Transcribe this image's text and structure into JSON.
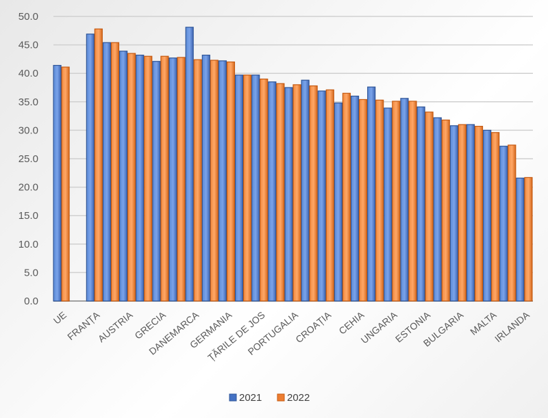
{
  "chart_data": {
    "type": "bar",
    "title": "",
    "xlabel": "",
    "ylabel": "",
    "ylim": [
      0,
      50
    ],
    "yticks": [
      "0.0",
      "5.0",
      "10.0",
      "15.0",
      "20.0",
      "25.0",
      "30.0",
      "35.0",
      "40.0",
      "45.0",
      "50.0"
    ],
    "grid": true,
    "legend_position": "bottom",
    "categories": [
      "UE",
      "",
      "FRANȚA",
      "",
      "AUSTRIA",
      "",
      "GRECIA",
      "",
      "DANEMARCA",
      "",
      "GERMANIA",
      "",
      "ȚĂRILE DE JOS",
      "",
      "PORTUGALIA",
      "",
      "CROAȚIA",
      "",
      "CEHIA",
      "",
      "UNGARIA",
      "",
      "ESTONIA",
      "",
      "BULGARIA",
      "",
      "MALTA",
      "",
      "IRLANDA"
    ],
    "series": [
      {
        "name": "2021",
        "color": "#4472C4",
        "values": [
          41.4,
          null,
          46.9,
          45.4,
          43.9,
          43.2,
          42.1,
          42.7,
          48.1,
          43.2,
          42.2,
          39.7,
          39.7,
          38.5,
          37.5,
          38.8,
          36.9,
          34.8,
          36.0,
          37.6,
          33.9,
          35.6,
          34.1,
          32.2,
          30.8,
          31.0,
          30.0,
          27.2,
          21.6
        ]
      },
      {
        "name": "2022",
        "color": "#ED7D31",
        "values": [
          41.1,
          null,
          47.8,
          45.4,
          43.5,
          43.0,
          43.0,
          42.8,
          42.4,
          42.3,
          42.0,
          39.7,
          39.0,
          38.2,
          38.0,
          37.8,
          37.1,
          36.5,
          35.4,
          35.3,
          35.1,
          35.1,
          33.2,
          31.8,
          31.0,
          30.7,
          29.6,
          27.4,
          21.7
        ]
      }
    ]
  }
}
